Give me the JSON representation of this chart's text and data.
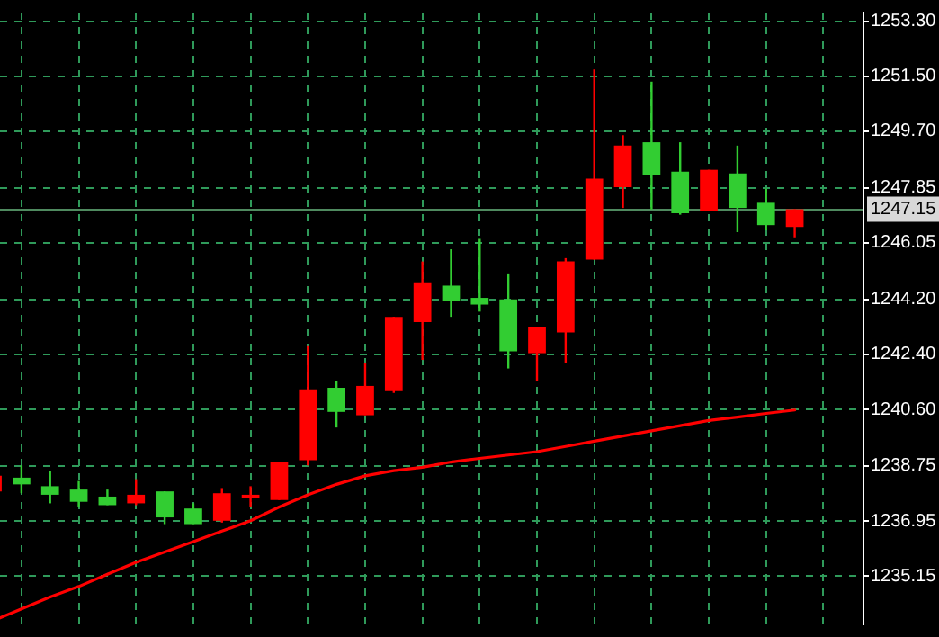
{
  "chart_data": {
    "type": "candlestick",
    "categories": [
      null,
      null,
      null,
      null,
      null,
      null,
      null,
      null,
      null,
      null,
      null,
      null,
      null,
      null,
      null,
      null,
      null,
      null,
      null,
      null,
      null,
      null,
      null,
      null,
      null,
      null,
      null,
      null,
      null
    ],
    "series": [
      {
        "ohlc": [
          [
            1238.43,
            1238.43,
            1237.92,
            1237.92
          ],
          [
            1238.15,
            1238.77,
            1237.86,
            1238.37
          ],
          [
            1237.81,
            1238.6,
            1237.53,
            1238.09
          ],
          [
            1237.58,
            1238.26,
            1237.41,
            1237.98
          ],
          [
            1237.47,
            1237.98,
            1237.47,
            1237.75
          ],
          [
            1237.81,
            1238.32,
            1237.47,
            1237.53
          ],
          [
            1237.07,
            1237.92,
            1236.85,
            1237.92
          ],
          [
            1236.85,
            1237.53,
            1236.85,
            1237.36
          ],
          [
            1237.86,
            1238.03,
            1236.9,
            1236.96
          ],
          [
            1237.81,
            1238.09,
            1237.41,
            1237.69
          ],
          [
            1238.88,
            1238.88,
            1237.64,
            1237.64
          ],
          [
            1241.26,
            1242.67,
            1238.77,
            1238.94
          ],
          [
            1240.52,
            1241.54,
            1240.01,
            1241.31
          ],
          [
            1241.37,
            1242.11,
            1240.41,
            1240.41
          ],
          [
            1243.63,
            1243.63,
            1241.14,
            1241.2
          ],
          [
            1244.76,
            1245.44,
            1242.22,
            1243.46
          ],
          [
            1244.14,
            1245.84,
            1243.63,
            1244.65
          ],
          [
            1244.03,
            1246.18,
            1243.8,
            1244.25
          ],
          [
            1242.5,
            1245.05,
            1241.94,
            1244.2
          ],
          [
            1243.29,
            1243.29,
            1241.54,
            1242.44
          ],
          [
            1245.44,
            1245.55,
            1242.11,
            1243.12
          ],
          [
            1248.15,
            1251.72,
            1245.5,
            1245.5
          ],
          [
            1249.23,
            1249.57,
            1247.19,
            1247.87
          ],
          [
            1248.27,
            1251.32,
            1247.14,
            1249.34
          ],
          [
            1247.02,
            1249.34,
            1246.97,
            1248.38
          ],
          [
            1248.44,
            1248.44,
            1247.08,
            1247.08
          ],
          [
            1247.19,
            1249.23,
            1246.4,
            1248.32
          ],
          [
            1246.63,
            1247.82,
            1246.46,
            1247.36
          ],
          [
            1247.15,
            1247.15,
            1246.23,
            1246.57
          ]
        ],
        "colors": [
          "#ff0000",
          "#32cd32",
          "#32cd32",
          "#32cd32",
          "#32cd32",
          "#ff0000",
          "#32cd32",
          "#32cd32",
          "#ff0000",
          "#ff0000",
          "#ff0000",
          "#ff0000",
          "#32cd32",
          "#ff0000",
          "#ff0000",
          "#ff0000",
          "#32cd32",
          "#32cd32",
          "#32cd32",
          "#ff0000",
          "#ff0000",
          "#ff0000",
          "#ff0000",
          "#32cd32",
          "#32cd32",
          "#ff0000",
          "#32cd32",
          "#32cd32",
          "#ff0000"
        ]
      },
      {
        "type": "line",
        "color": "#ff0000",
        "values": [
          1233.68,
          1234.08,
          1234.47,
          1234.81,
          1235.21,
          1235.6,
          1235.94,
          1236.28,
          1236.62,
          1236.96,
          1237.41,
          1237.81,
          1238.15,
          1238.43,
          1238.6,
          1238.71,
          1238.88,
          1239.0,
          1239.11,
          1239.22,
          1239.39,
          1239.56,
          1239.73,
          1239.9,
          1240.07,
          1240.24,
          1240.35,
          1240.47,
          1240.58
        ]
      }
    ],
    "ylim": [
      1233.57,
      1253.58
    ],
    "yticks": [
      {
        "value": 1253.3,
        "label": "1253.30"
      },
      {
        "value": 1251.5,
        "label": "1251.50"
      },
      {
        "value": 1249.7,
        "label": "1249.70"
      },
      {
        "value": 1247.85,
        "label": "1247.85"
      },
      {
        "value": 1246.05,
        "label": "1246.05"
      },
      {
        "value": 1244.2,
        "label": "1244.20"
      },
      {
        "value": 1242.4,
        "label": "1242.40"
      },
      {
        "value": 1240.6,
        "label": "1240.60"
      },
      {
        "value": 1238.75,
        "label": "1238.75"
      },
      {
        "value": 1236.95,
        "label": "1236.95"
      },
      {
        "value": 1235.15,
        "label": "1235.15"
      }
    ],
    "grid": true,
    "legend": false,
    "tick_labels": "y",
    "marker": "none",
    "ref_lines": [
      {
        "axis": "y",
        "value": 1247.15,
        "label": "1247.15",
        "color": "#4f8a5f"
      }
    ]
  }
}
